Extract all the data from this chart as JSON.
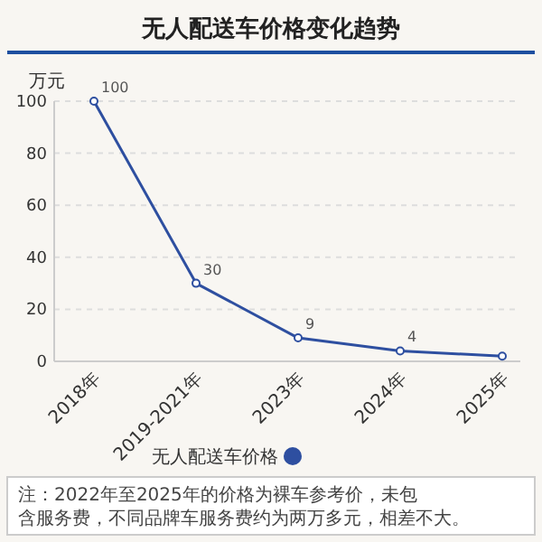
{
  "chart_data": {
    "type": "line",
    "title": "无人配送车价格变化趋势",
    "ylabel": "万元",
    "categories": [
      "2018年",
      "2019-2021年",
      "2023年",
      "2024年",
      "2025年"
    ],
    "series": [
      {
        "name": "无人配送车价格",
        "color": "#2e4fa0",
        "values": [
          100,
          30,
          9,
          4,
          2
        ],
        "value_labels": [
          "100",
          "30",
          "9",
          "4",
          null
        ]
      }
    ],
    "ylim": [
      0,
      100
    ],
    "yticks": [
      0,
      20,
      40,
      60,
      80,
      100
    ],
    "grid": "y",
    "legend": "bottom",
    "marker": "circle",
    "annotations": [
      "注：2022年至2025年的价格为裸车参考价，未包含服务费，不同品牌车服务费约为两万多元，相差不大。"
    ]
  }
}
